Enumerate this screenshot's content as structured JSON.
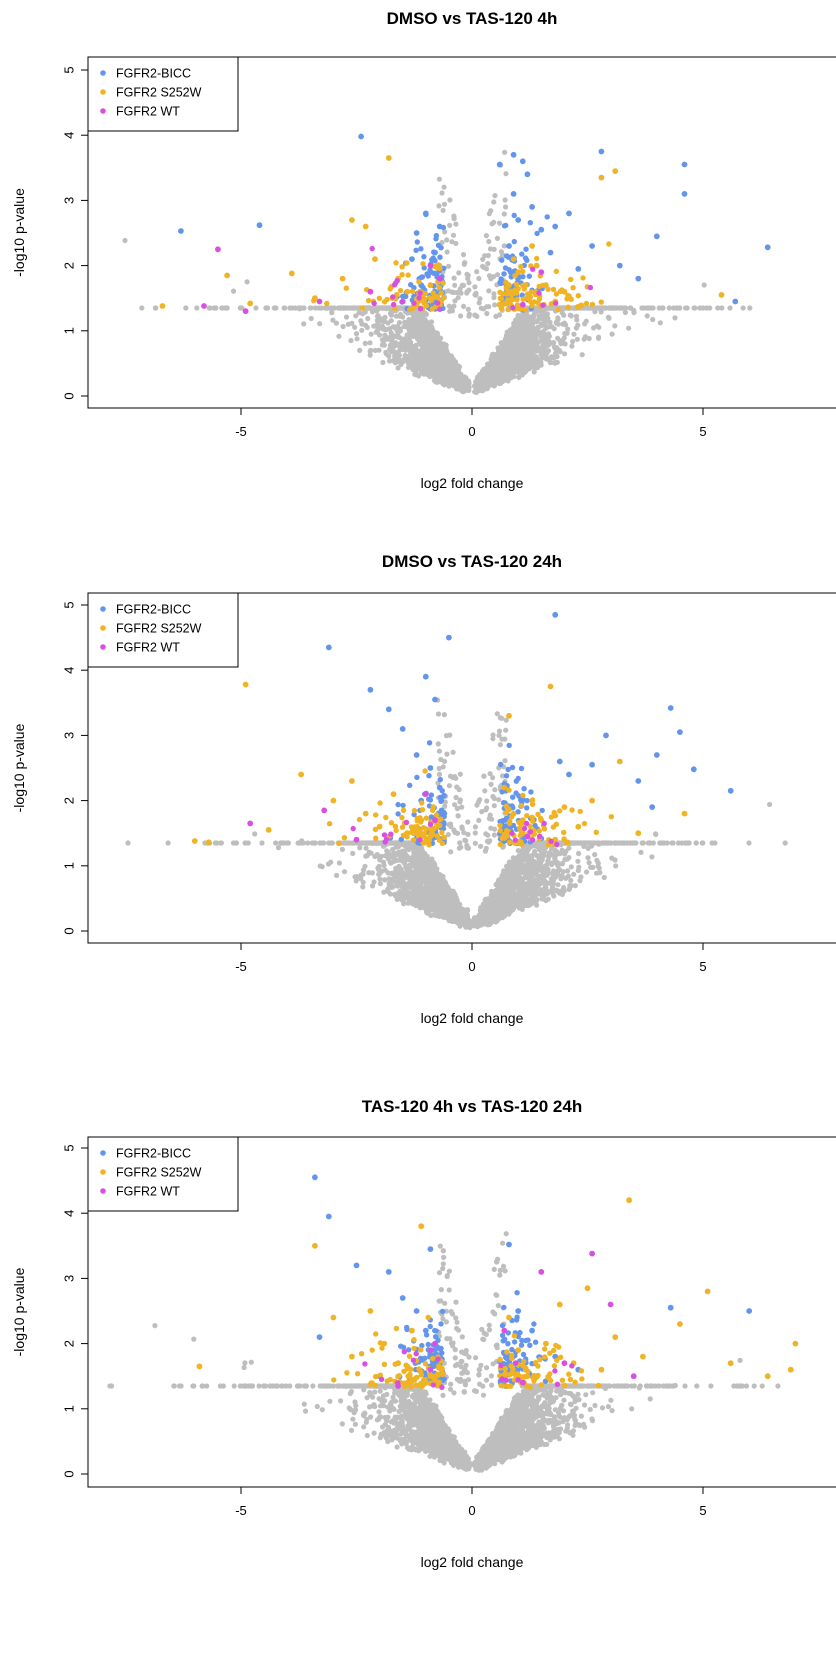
{
  "colors": {
    "bicc": "#6495ED",
    "s252w": "#F0B323",
    "wt": "#DA4FE3",
    "background": "#BEBEBE"
  },
  "legend": [
    "FGFR2-BICC",
    "FGFR2 S252W",
    "FGFR2 WT"
  ],
  "chart_data": [
    {
      "type": "scatter",
      "title": "DMSO vs TAS-120 4h",
      "xlabel": "log2 fold change",
      "ylabel": "-log10 p-value",
      "xlim": [
        -8,
        8
      ],
      "ylim": [
        0,
        5
      ],
      "xticks": [
        "-5",
        "0",
        "5"
      ],
      "yticks": [
        "0",
        "1",
        "2",
        "3",
        "4",
        "5"
      ],
      "legend_position": "top-left",
      "series": [
        {
          "name": "FGFR2-BICC",
          "color": "#6495ED",
          "points": [
            [
              -6.3,
              2.53
            ],
            [
              -4.6,
              2.62
            ],
            [
              -2.4,
              3.98
            ],
            [
              -1.2,
              2.5
            ],
            [
              -1.0,
              2.8
            ],
            [
              -0.8,
              2.2
            ],
            [
              -1.3,
              2.1
            ],
            [
              -0.9,
              1.9
            ],
            [
              -0.7,
              2.6
            ],
            [
              -1.1,
              1.7
            ],
            [
              0.6,
              3.55
            ],
            [
              0.9,
              3.7
            ],
            [
              1.1,
              3.6
            ],
            [
              1.2,
              3.4
            ],
            [
              0.9,
              3.1
            ],
            [
              1.3,
              2.9
            ],
            [
              1.0,
              2.7
            ],
            [
              1.5,
              2.55
            ],
            [
              1.8,
              2.6
            ],
            [
              2.1,
              2.8
            ],
            [
              2.6,
              2.3
            ],
            [
              2.8,
              3.75
            ],
            [
              3.2,
              2.0
            ],
            [
              3.6,
              1.8
            ],
            [
              4.0,
              2.45
            ],
            [
              4.6,
              3.55
            ],
            [
              4.6,
              3.1
            ],
            [
              5.7,
              1.45
            ],
            [
              6.4,
              2.28
            ],
            [
              2.3,
              1.95
            ],
            [
              1.7,
              2.2
            ],
            [
              0.8,
              2.3
            ]
          ]
        },
        {
          "name": "FGFR2 S252W",
          "color": "#F0B323",
          "points": [
            [
              -6.7,
              1.38
            ],
            [
              -5.3,
              1.85
            ],
            [
              -4.8,
              1.42
            ],
            [
              -3.9,
              1.88
            ],
            [
              -3.4,
              1.5
            ],
            [
              -2.8,
              1.8
            ],
            [
              -2.6,
              2.7
            ],
            [
              -2.3,
              2.6
            ],
            [
              -2.1,
              2.1
            ],
            [
              -1.8,
              3.65
            ],
            [
              -1.6,
              1.8
            ],
            [
              -1.4,
              1.6
            ],
            [
              -1.1,
              1.5
            ],
            [
              -0.9,
              1.7
            ],
            [
              -1.2,
              1.4
            ],
            [
              0.6,
              1.4
            ],
            [
              0.8,
              1.7
            ],
            [
              1.0,
              1.9
            ],
            [
              1.2,
              1.5
            ],
            [
              1.4,
              2.0
            ],
            [
              1.6,
              1.7
            ],
            [
              1.0,
              1.35
            ],
            [
              1.8,
              1.45
            ],
            [
              2.0,
              1.6
            ],
            [
              2.8,
              3.35
            ],
            [
              3.1,
              3.45
            ],
            [
              5.4,
              1.55
            ],
            [
              1.3,
              2.3
            ],
            [
              0.9,
              2.1
            ]
          ]
        },
        {
          "name": "FGFR2 WT",
          "color": "#DA4FE3",
          "points": [
            [
              -5.5,
              2.25
            ],
            [
              -5.8,
              1.38
            ],
            [
              -4.9,
              1.3
            ],
            [
              -3.3,
              1.45
            ],
            [
              -2.2,
              1.6
            ],
            [
              -1.5,
              1.45
            ],
            [
              -0.7,
              1.8
            ],
            [
              -0.9,
              2.0
            ],
            [
              1.1,
              1.4
            ],
            [
              1.5,
              1.9
            ]
          ]
        }
      ]
    },
    {
      "type": "scatter",
      "title": "DMSO vs TAS-120 24h",
      "xlabel": "log2 fold change",
      "ylabel": "-log10 p-value",
      "xlim": [
        -8,
        8
      ],
      "ylim": [
        0,
        5
      ],
      "xticks": [
        "-5",
        "0",
        "5"
      ],
      "yticks": [
        "0",
        "1",
        "2",
        "3",
        "4",
        "5"
      ],
      "legend_position": "top-left",
      "series": [
        {
          "name": "FGFR2-BICC",
          "color": "#6495ED",
          "points": [
            [
              -3.1,
              4.35
            ],
            [
              -2.2,
              3.7
            ],
            [
              -1.8,
              3.4
            ],
            [
              -1.5,
              3.1
            ],
            [
              -1.2,
              2.7
            ],
            [
              -1.0,
              3.9
            ],
            [
              -0.8,
              3.55
            ],
            [
              -0.9,
              2.5
            ],
            [
              -0.7,
              2.2
            ],
            [
              -1.1,
              2.0
            ],
            [
              -0.6,
              1.8
            ],
            [
              -0.5,
              4.5
            ],
            [
              1.8,
              4.85
            ],
            [
              1.9,
              2.6
            ],
            [
              2.1,
              2.4
            ],
            [
              2.6,
              2.55
            ],
            [
              2.9,
              3.0
            ],
            [
              3.6,
              2.3
            ],
            [
              4.0,
              2.7
            ],
            [
              4.3,
              3.42
            ],
            [
              4.5,
              3.05
            ],
            [
              4.8,
              2.48
            ],
            [
              5.6,
              2.15
            ],
            [
              3.9,
              1.9
            ]
          ]
        },
        {
          "name": "FGFR2 S252W",
          "color": "#F0B323",
          "points": [
            [
              -6.0,
              1.38
            ],
            [
              -5.7,
              1.36
            ],
            [
              -4.9,
              3.78
            ],
            [
              -4.4,
              1.55
            ],
            [
              -3.7,
              2.4
            ],
            [
              -3.0,
              2.0
            ],
            [
              -2.6,
              2.3
            ],
            [
              -2.3,
              1.8
            ],
            [
              -2.0,
              1.6
            ],
            [
              -1.7,
              2.1
            ],
            [
              -1.4,
              1.5
            ],
            [
              -1.1,
              1.7
            ],
            [
              -0.9,
              1.45
            ],
            [
              0.7,
              2.2
            ],
            [
              0.9,
              1.8
            ],
            [
              1.1,
              1.5
            ],
            [
              1.3,
              2.0
            ],
            [
              1.5,
              1.7
            ],
            [
              1.7,
              3.75
            ],
            [
              1.8,
              1.4
            ],
            [
              2.0,
              1.9
            ],
            [
              2.3,
              1.6
            ],
            [
              2.6,
              2.0
            ],
            [
              3.2,
              2.6
            ],
            [
              3.6,
              1.5
            ],
            [
              4.6,
              1.8
            ],
            [
              0.8,
              3.3
            ]
          ]
        },
        {
          "name": "FGFR2 WT",
          "color": "#DA4FE3",
          "points": [
            [
              -4.8,
              1.65
            ],
            [
              -3.2,
              1.85
            ],
            [
              -2.5,
              1.4
            ],
            [
              -1.0,
              2.1
            ],
            [
              -0.8,
              1.7
            ],
            [
              1.2,
              1.45
            ]
          ]
        }
      ]
    },
    {
      "type": "scatter",
      "title": "TAS-120 4h vs TAS-120 24h",
      "xlabel": "log2 fold change",
      "ylabel": "-log10 p-value",
      "xlim": [
        -8,
        8
      ],
      "ylim": [
        0,
        5
      ],
      "xticks": [
        "-5",
        "0",
        "5"
      ],
      "yticks": [
        "0",
        "1",
        "2",
        "3",
        "4",
        "5"
      ],
      "legend_position": "top-left",
      "series": [
        {
          "name": "FGFR2-BICC",
          "color": "#6495ED",
          "points": [
            [
              -3.4,
              4.55
            ],
            [
              -3.1,
              3.95
            ],
            [
              -2.5,
              3.2
            ],
            [
              -1.8,
              3.1
            ],
            [
              -1.5,
              2.7
            ],
            [
              -1.2,
              2.5
            ],
            [
              -0.9,
              3.45
            ],
            [
              -1.0,
              2.2
            ],
            [
              -0.8,
              1.9
            ],
            [
              -3.3,
              2.1
            ],
            [
              -2.0,
              1.5
            ],
            [
              0.8,
              3.52
            ],
            [
              1.0,
              2.5
            ],
            [
              1.3,
              2.2
            ],
            [
              1.8,
              1.8
            ],
            [
              2.3,
              1.6
            ],
            [
              4.3,
              2.55
            ],
            [
              6.0,
              2.5
            ]
          ]
        },
        {
          "name": "FGFR2 S252W",
          "color": "#F0B323",
          "points": [
            [
              -5.9,
              1.65
            ],
            [
              -3.4,
              3.5
            ],
            [
              -3.0,
              2.4
            ],
            [
              -2.6,
              1.8
            ],
            [
              -2.2,
              2.5
            ],
            [
              -1.9,
              2.0
            ],
            [
              -1.6,
              1.7
            ],
            [
              -1.3,
              2.2
            ],
            [
              -1.1,
              3.8
            ],
            [
              -0.9,
              1.5
            ],
            [
              -1.4,
              1.4
            ],
            [
              0.8,
              2.4
            ],
            [
              1.0,
              1.9
            ],
            [
              1.2,
              1.5
            ],
            [
              1.6,
              2.0
            ],
            [
              1.9,
              2.6
            ],
            [
              2.2,
              1.7
            ],
            [
              2.5,
              2.85
            ],
            [
              2.8,
              1.6
            ],
            [
              3.1,
              2.1
            ],
            [
              3.4,
              4.2
            ],
            [
              3.7,
              1.8
            ],
            [
              4.5,
              2.3
            ],
            [
              5.1,
              2.8
            ],
            [
              5.6,
              1.7
            ],
            [
              6.4,
              1.5
            ],
            [
              6.9,
              1.6
            ],
            [
              7.0,
              2.0
            ]
          ]
        },
        {
          "name": "FGFR2 WT",
          "color": "#DA4FE3",
          "points": [
            [
              -1.6,
              1.35
            ],
            [
              -0.8,
              2.0
            ],
            [
              -0.9,
              1.6
            ],
            [
              0.7,
              2.2
            ],
            [
              1.5,
              3.1
            ],
            [
              2.0,
              1.7
            ],
            [
              2.6,
              3.38
            ],
            [
              3.0,
              2.6
            ],
            [
              1.1,
              1.4
            ],
            [
              3.5,
              1.5
            ]
          ]
        }
      ]
    }
  ]
}
